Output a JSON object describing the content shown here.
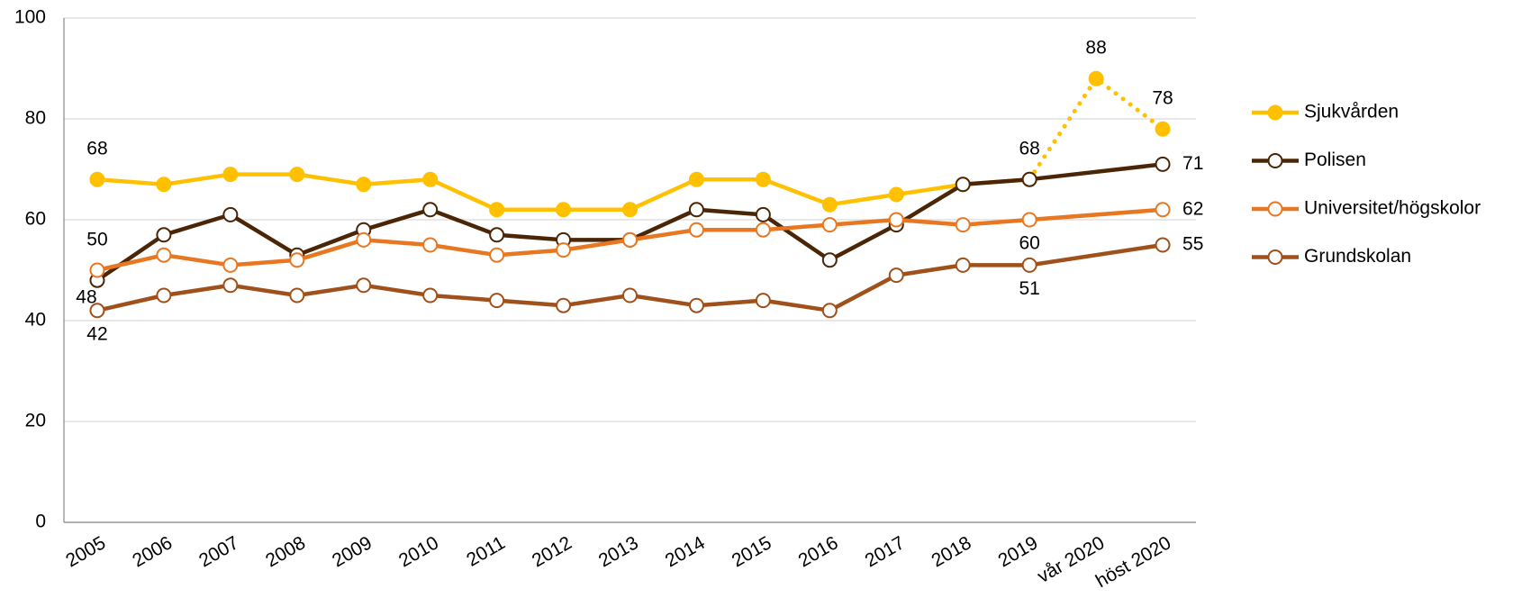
{
  "chart_data": {
    "type": "line",
    "categories": [
      "2005",
      "2006",
      "2007",
      "2008",
      "2009",
      "2010",
      "2011",
      "2012",
      "2013",
      "2014",
      "2015",
      "2016",
      "2017",
      "2018",
      "2019",
      "vår 2020",
      "höst 2020"
    ],
    "series": [
      {
        "name": "Sjukvården",
        "color": "#ffc000",
        "marker_fill": "filled",
        "dotted_from": "2019",
        "values": [
          68,
          67,
          69,
          69,
          67,
          68,
          62,
          62,
          62,
          68,
          68,
          63,
          65,
          67,
          68,
          88,
          78
        ],
        "label_positions": [
          "above",
          null,
          null,
          null,
          null,
          null,
          null,
          null,
          null,
          null,
          null,
          null,
          null,
          null,
          null,
          "above",
          "above"
        ]
      },
      {
        "name": "Polisen",
        "color": "#4a2506",
        "marker_fill": "open",
        "values": [
          48,
          57,
          61,
          53,
          58,
          62,
          57,
          56,
          56,
          62,
          61,
          52,
          59,
          67,
          68,
          null,
          71
        ],
        "label_positions": [
          "below-left",
          null,
          null,
          null,
          null,
          null,
          null,
          null,
          null,
          null,
          null,
          null,
          null,
          null,
          "above",
          null,
          "right"
        ]
      },
      {
        "name": "Universitet/högskolor",
        "color": "#e87722",
        "marker_fill": "open",
        "values": [
          50,
          53,
          51,
          52,
          56,
          55,
          53,
          54,
          56,
          58,
          58,
          59,
          60,
          59,
          60,
          null,
          62
        ],
        "label_positions": [
          "above",
          null,
          null,
          null,
          null,
          null,
          null,
          null,
          null,
          null,
          null,
          null,
          null,
          null,
          "below",
          null,
          "right"
        ]
      },
      {
        "name": "Grundskolan",
        "color": "#a0501a",
        "marker_fill": "open",
        "values": [
          42,
          45,
          47,
          45,
          47,
          45,
          44,
          43,
          45,
          43,
          44,
          42,
          49,
          51,
          51,
          null,
          55
        ],
        "label_positions": [
          "below",
          null,
          null,
          null,
          null,
          null,
          null,
          null,
          null,
          null,
          null,
          null,
          null,
          null,
          "below",
          null,
          "right"
        ]
      }
    ],
    "ylim": [
      0,
      100
    ],
    "yticks": [
      0,
      20,
      40,
      60,
      80,
      100
    ],
    "grid": true,
    "legend": "right"
  }
}
